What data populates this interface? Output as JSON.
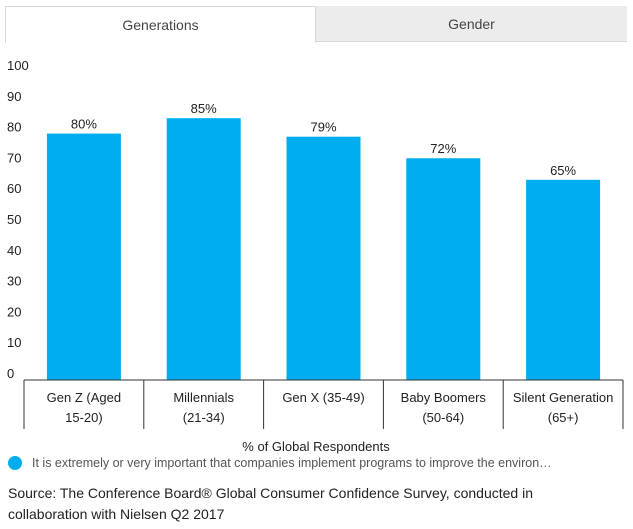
{
  "tabs": [
    {
      "label": "Generations",
      "active": true
    },
    {
      "label": "Gender",
      "active": false
    }
  ],
  "chart_data": {
    "type": "bar",
    "categories": [
      [
        "Gen Z (Aged",
        "15-20)"
      ],
      [
        "Millennials",
        "(21-34)"
      ],
      [
        "Gen X (35-49)"
      ],
      [
        "Baby Boomers",
        "(50-64)"
      ],
      [
        "Silent Generation",
        "(65+)"
      ]
    ],
    "values": [
      80,
      85,
      79,
      72,
      65
    ],
    "data_labels": [
      "80%",
      "85%",
      "79%",
      "72%",
      "65%"
    ],
    "yticks": [
      0,
      10,
      20,
      30,
      40,
      50,
      60,
      70,
      80,
      90,
      100
    ],
    "ylim": [
      0,
      100
    ],
    "xlabel": "% of Global Respondents",
    "ylabel": "",
    "grid": false,
    "bar_color": "#00aeef",
    "legend_position": "bottom"
  },
  "legend": {
    "text": "It is extremely or very important that companies implement programs to improve the environ…",
    "color": "#00aeef"
  },
  "source": "Source: The Conference Board® Global Consumer Confidence Survey, conducted in collaboration with Nielsen Q2 2017"
}
